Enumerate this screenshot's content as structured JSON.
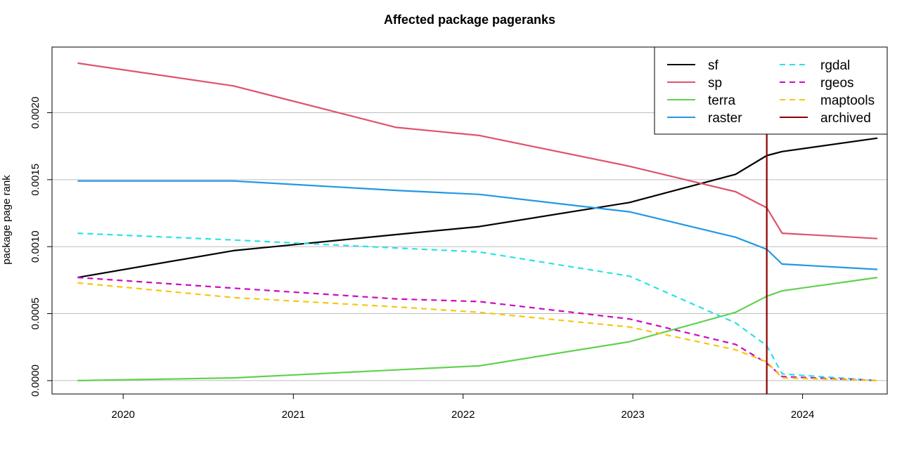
{
  "chart_data": {
    "type": "line",
    "title": "Affected package pageranks",
    "xlabel": "",
    "ylabel": "package page rank",
    "xlim": [
      "2019-08-01",
      "2024-07-01"
    ],
    "ylim": [
      -0.0001,
      0.00249
    ],
    "x_ticks": [
      {
        "date": "2020-01-01",
        "label": "2020"
      },
      {
        "date": "2021-01-01",
        "label": "2021"
      },
      {
        "date": "2022-01-01",
        "label": "2022"
      },
      {
        "date": "2023-01-01",
        "label": "2023"
      },
      {
        "date": "2024-01-01",
        "label": "2024"
      }
    ],
    "y_ticks": [
      {
        "value": 0.0,
        "label": "0.0000"
      },
      {
        "value": 0.0005,
        "label": "0.0005"
      },
      {
        "value": 0.001,
        "label": "0.0010"
      },
      {
        "value": 0.0015,
        "label": "0.0015"
      },
      {
        "value": 0.002,
        "label": "0.0020"
      }
    ],
    "grid": "horizontal",
    "legend_position": "top-right",
    "x": [
      "2019-09-25",
      "2020-08-25",
      "2021-08-10",
      "2022-02-05",
      "2022-12-25",
      "2023-08-10",
      "2023-10-16",
      "2023-11-18",
      "2024-06-10"
    ],
    "series": [
      {
        "name": "sf",
        "color": "#000000",
        "dash": "solid",
        "values": [
          0.00077,
          0.00097,
          0.00109,
          0.00115,
          0.00133,
          0.00154,
          0.00168,
          0.00171,
          0.00181
        ]
      },
      {
        "name": "sp",
        "color": "#DF536B",
        "dash": "solid",
        "values": [
          0.00237,
          0.0022,
          0.00189,
          0.00183,
          0.0016,
          0.00141,
          0.00129,
          0.0011,
          0.00106
        ]
      },
      {
        "name": "terra",
        "color": "#61D04F",
        "dash": "solid",
        "values": [
          0.0,
          2e-05,
          8e-05,
          0.00011,
          0.00029,
          0.00051,
          0.00063,
          0.00067,
          0.00077
        ]
      },
      {
        "name": "raster",
        "color": "#2297E6",
        "dash": "solid",
        "values": [
          0.00149,
          0.00149,
          0.00142,
          0.00139,
          0.00126,
          0.00107,
          0.00098,
          0.00087,
          0.00083
        ]
      },
      {
        "name": "rgdal",
        "color": "#28E2E5",
        "dash": "dashed",
        "values": [
          0.0011,
          0.00105,
          0.00099,
          0.00096,
          0.00078,
          0.00043,
          0.00026,
          5e-05,
          0.0
        ]
      },
      {
        "name": "rgeos",
        "color": "#CD0BBC",
        "dash": "dashed",
        "values": [
          0.00077,
          0.00069,
          0.00061,
          0.00059,
          0.00046,
          0.00027,
          0.00013,
          3e-05,
          0.0
        ]
      },
      {
        "name": "maptools",
        "color": "#F5C710",
        "dash": "dashed",
        "values": [
          0.00073,
          0.00062,
          0.00055,
          0.00051,
          0.0004,
          0.00023,
          0.00014,
          2e-05,
          0.0
        ]
      }
    ],
    "vlines": [
      {
        "name": "archived",
        "date": "2023-10-16",
        "color": "#8B0000"
      }
    ],
    "legend": [
      {
        "label": "sf",
        "color": "#000000",
        "dash": "solid"
      },
      {
        "label": "sp",
        "color": "#DF536B",
        "dash": "solid"
      },
      {
        "label": "terra",
        "color": "#61D04F",
        "dash": "solid"
      },
      {
        "label": "raster",
        "color": "#2297E6",
        "dash": "solid"
      },
      {
        "label": "rgdal",
        "color": "#28E2E5",
        "dash": "dashed"
      },
      {
        "label": "rgeos",
        "color": "#CD0BBC",
        "dash": "dashed"
      },
      {
        "label": "maptools",
        "color": "#F5C710",
        "dash": "dashed"
      },
      {
        "label": "archived",
        "color": "#8B0000",
        "dash": "solid"
      }
    ]
  }
}
